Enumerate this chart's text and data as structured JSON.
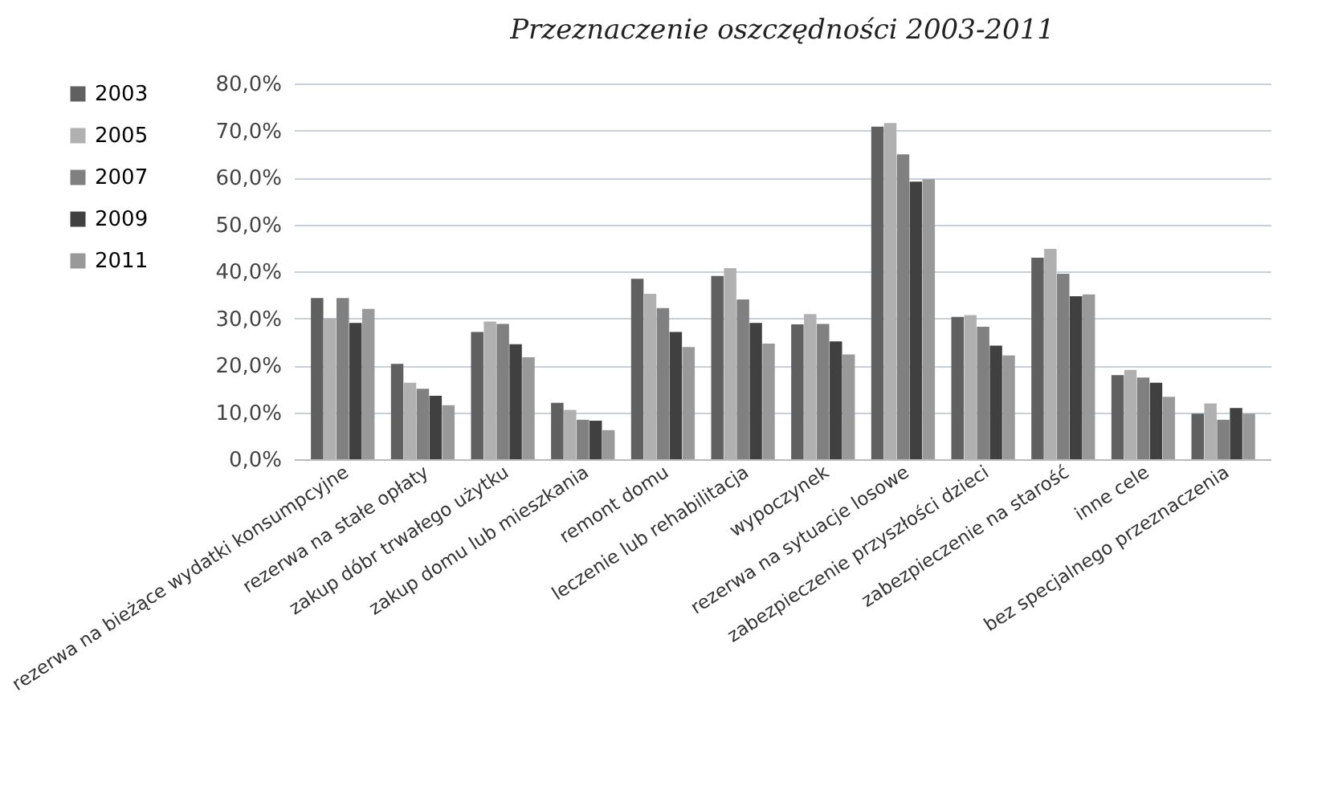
{
  "chart_data": {
    "type": "bar",
    "title": "Przeznaczenie oszczędności 2003-2011",
    "categories": [
      "rezerwa na bieżące wydatki konsumpcyjne",
      "rezerwa na stałe opłaty",
      "zakup dóbr trwałego użytku",
      "zakup domu lub mieszkania",
      "remont domu",
      "leczenie lub rehabilitacja",
      "wypoczynek",
      "rezerwa na sytuacje losowe",
      "zabezpieczenie przyszłości dzieci",
      "zabezpieczenie na starość",
      "inne cele",
      "bez specjalnego przeznaczenia"
    ],
    "series": [
      {
        "name": "2003",
        "color": "#606060",
        "values": [
          34.3,
          20.3,
          27.1,
          12.0,
          38.4,
          39.0,
          28.7,
          70.8,
          30.3,
          42.9,
          17.9,
          9.7
        ]
      },
      {
        "name": "2005",
        "color": "#b0b0b0",
        "values": [
          30.0,
          16.3,
          29.3,
          10.5,
          35.2,
          40.7,
          30.9,
          71.6,
          30.7,
          44.8,
          19.0,
          11.9
        ]
      },
      {
        "name": "2007",
        "color": "#808080",
        "values": [
          34.3,
          15.0,
          28.8,
          8.4,
          32.2,
          34.0,
          28.8,
          64.9,
          28.2,
          39.5,
          17.4,
          8.4
        ]
      },
      {
        "name": "2009",
        "color": "#404040",
        "values": [
          29.0,
          13.5,
          24.5,
          8.2,
          27.1,
          29.0,
          25.1,
          59.1,
          24.2,
          34.7,
          16.3,
          10.9
        ]
      },
      {
        "name": "2011",
        "color": "#999999",
        "values": [
          32.0,
          11.5,
          21.7,
          6.2,
          23.9,
          24.6,
          22.3,
          59.6,
          22.1,
          35.1,
          13.3,
          9.7
        ]
      }
    ],
    "ylim": [
      0,
      80
    ],
    "yticks": [
      {
        "value": 0,
        "label": "0,0%"
      },
      {
        "value": 10,
        "label": "10,0%"
      },
      {
        "value": 20,
        "label": "20,0%"
      },
      {
        "value": 30,
        "label": "30,0%"
      },
      {
        "value": 40,
        "label": "40,0%"
      },
      {
        "value": 50,
        "label": "50,0%"
      },
      {
        "value": 60,
        "label": "60,0%"
      },
      {
        "value": 70,
        "label": "70,0%"
      },
      {
        "value": 80,
        "label": "80,0%"
      }
    ],
    "grid": "y",
    "legend": "left"
  }
}
